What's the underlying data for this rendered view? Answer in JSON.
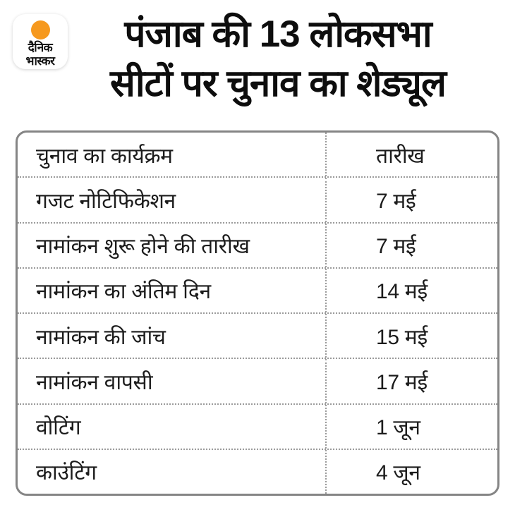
{
  "logo": {
    "name_line1": "दैनिक",
    "name_line2": "भास्कर",
    "sun_icon": "orange-sun-dot"
  },
  "title": {
    "line1": "पंजाब की 13 लोकसभा",
    "line2": "सीटों पर चुनाव का शेड्यूल"
  },
  "colors": {
    "accent_orange": "#F6991E",
    "table_border": "#858585",
    "divider_gray": "#9B9B9B",
    "text_black": "#0D0D0D"
  },
  "chart_data": {
    "type": "table",
    "title": "पंजाब की 13 लोकसभा सीटों पर चुनाव का शेड्यूल",
    "columns": [
      "चुनाव का कार्यक्रम",
      "तारीख"
    ],
    "rows": [
      [
        "गजट नोटिफिकेशन",
        "7 मई"
      ],
      [
        "नामांकन शुरू होने की तारीख",
        "7 मई"
      ],
      [
        "नामांकन का अंतिम दिन",
        "14 मई"
      ],
      [
        "नामांकन की जांच",
        "15 मई"
      ],
      [
        "नामांकन वापसी",
        "17 मई"
      ],
      [
        "वोटिंग",
        "1 जून"
      ],
      [
        "काउंटिंग",
        "4 जून"
      ]
    ],
    "layout_hints": {
      "header_row_styled_same_as_body": true,
      "row_separators": "dotted",
      "column_separator": "dotted",
      "outer_border": "solid rounded"
    }
  }
}
